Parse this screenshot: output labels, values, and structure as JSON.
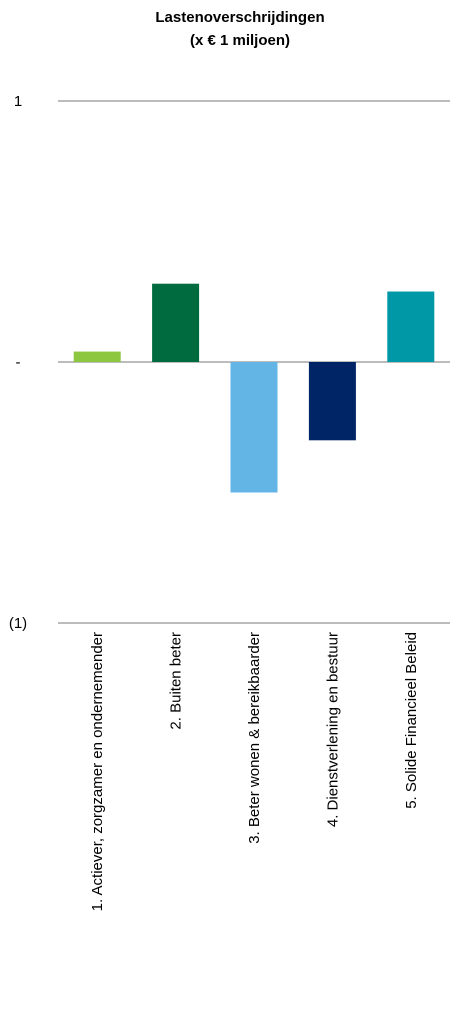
{
  "chart_data": {
    "type": "bar",
    "title": "Lastenoverschrijdingen",
    "subtitle": "(x € 1 miljoen)",
    "xlabel": "",
    "ylabel": "",
    "categories": [
      "1. Actiever, zorgzamer en ondernemender",
      "2. Buiten beter",
      "3. Beter wonen & bereikbaarder",
      "4. Dienstverlening en bestuur",
      "5. Solide Financieel Beleid"
    ],
    "values": [
      0.04,
      0.3,
      -0.5,
      -0.3,
      0.27
    ],
    "colors": [
      "#8DC63F",
      "#006B3F",
      "#62B5E5",
      "#002566",
      "#0097A7"
    ],
    "ylim": [
      -1,
      1
    ],
    "yticks": [
      {
        "value": 1,
        "label": "1"
      },
      {
        "value": 0,
        "label": "-"
      },
      {
        "value": -1,
        "label": "(1)"
      }
    ],
    "gridlines": true,
    "gridline_color": "#A6A6A6",
    "legend": "none"
  }
}
